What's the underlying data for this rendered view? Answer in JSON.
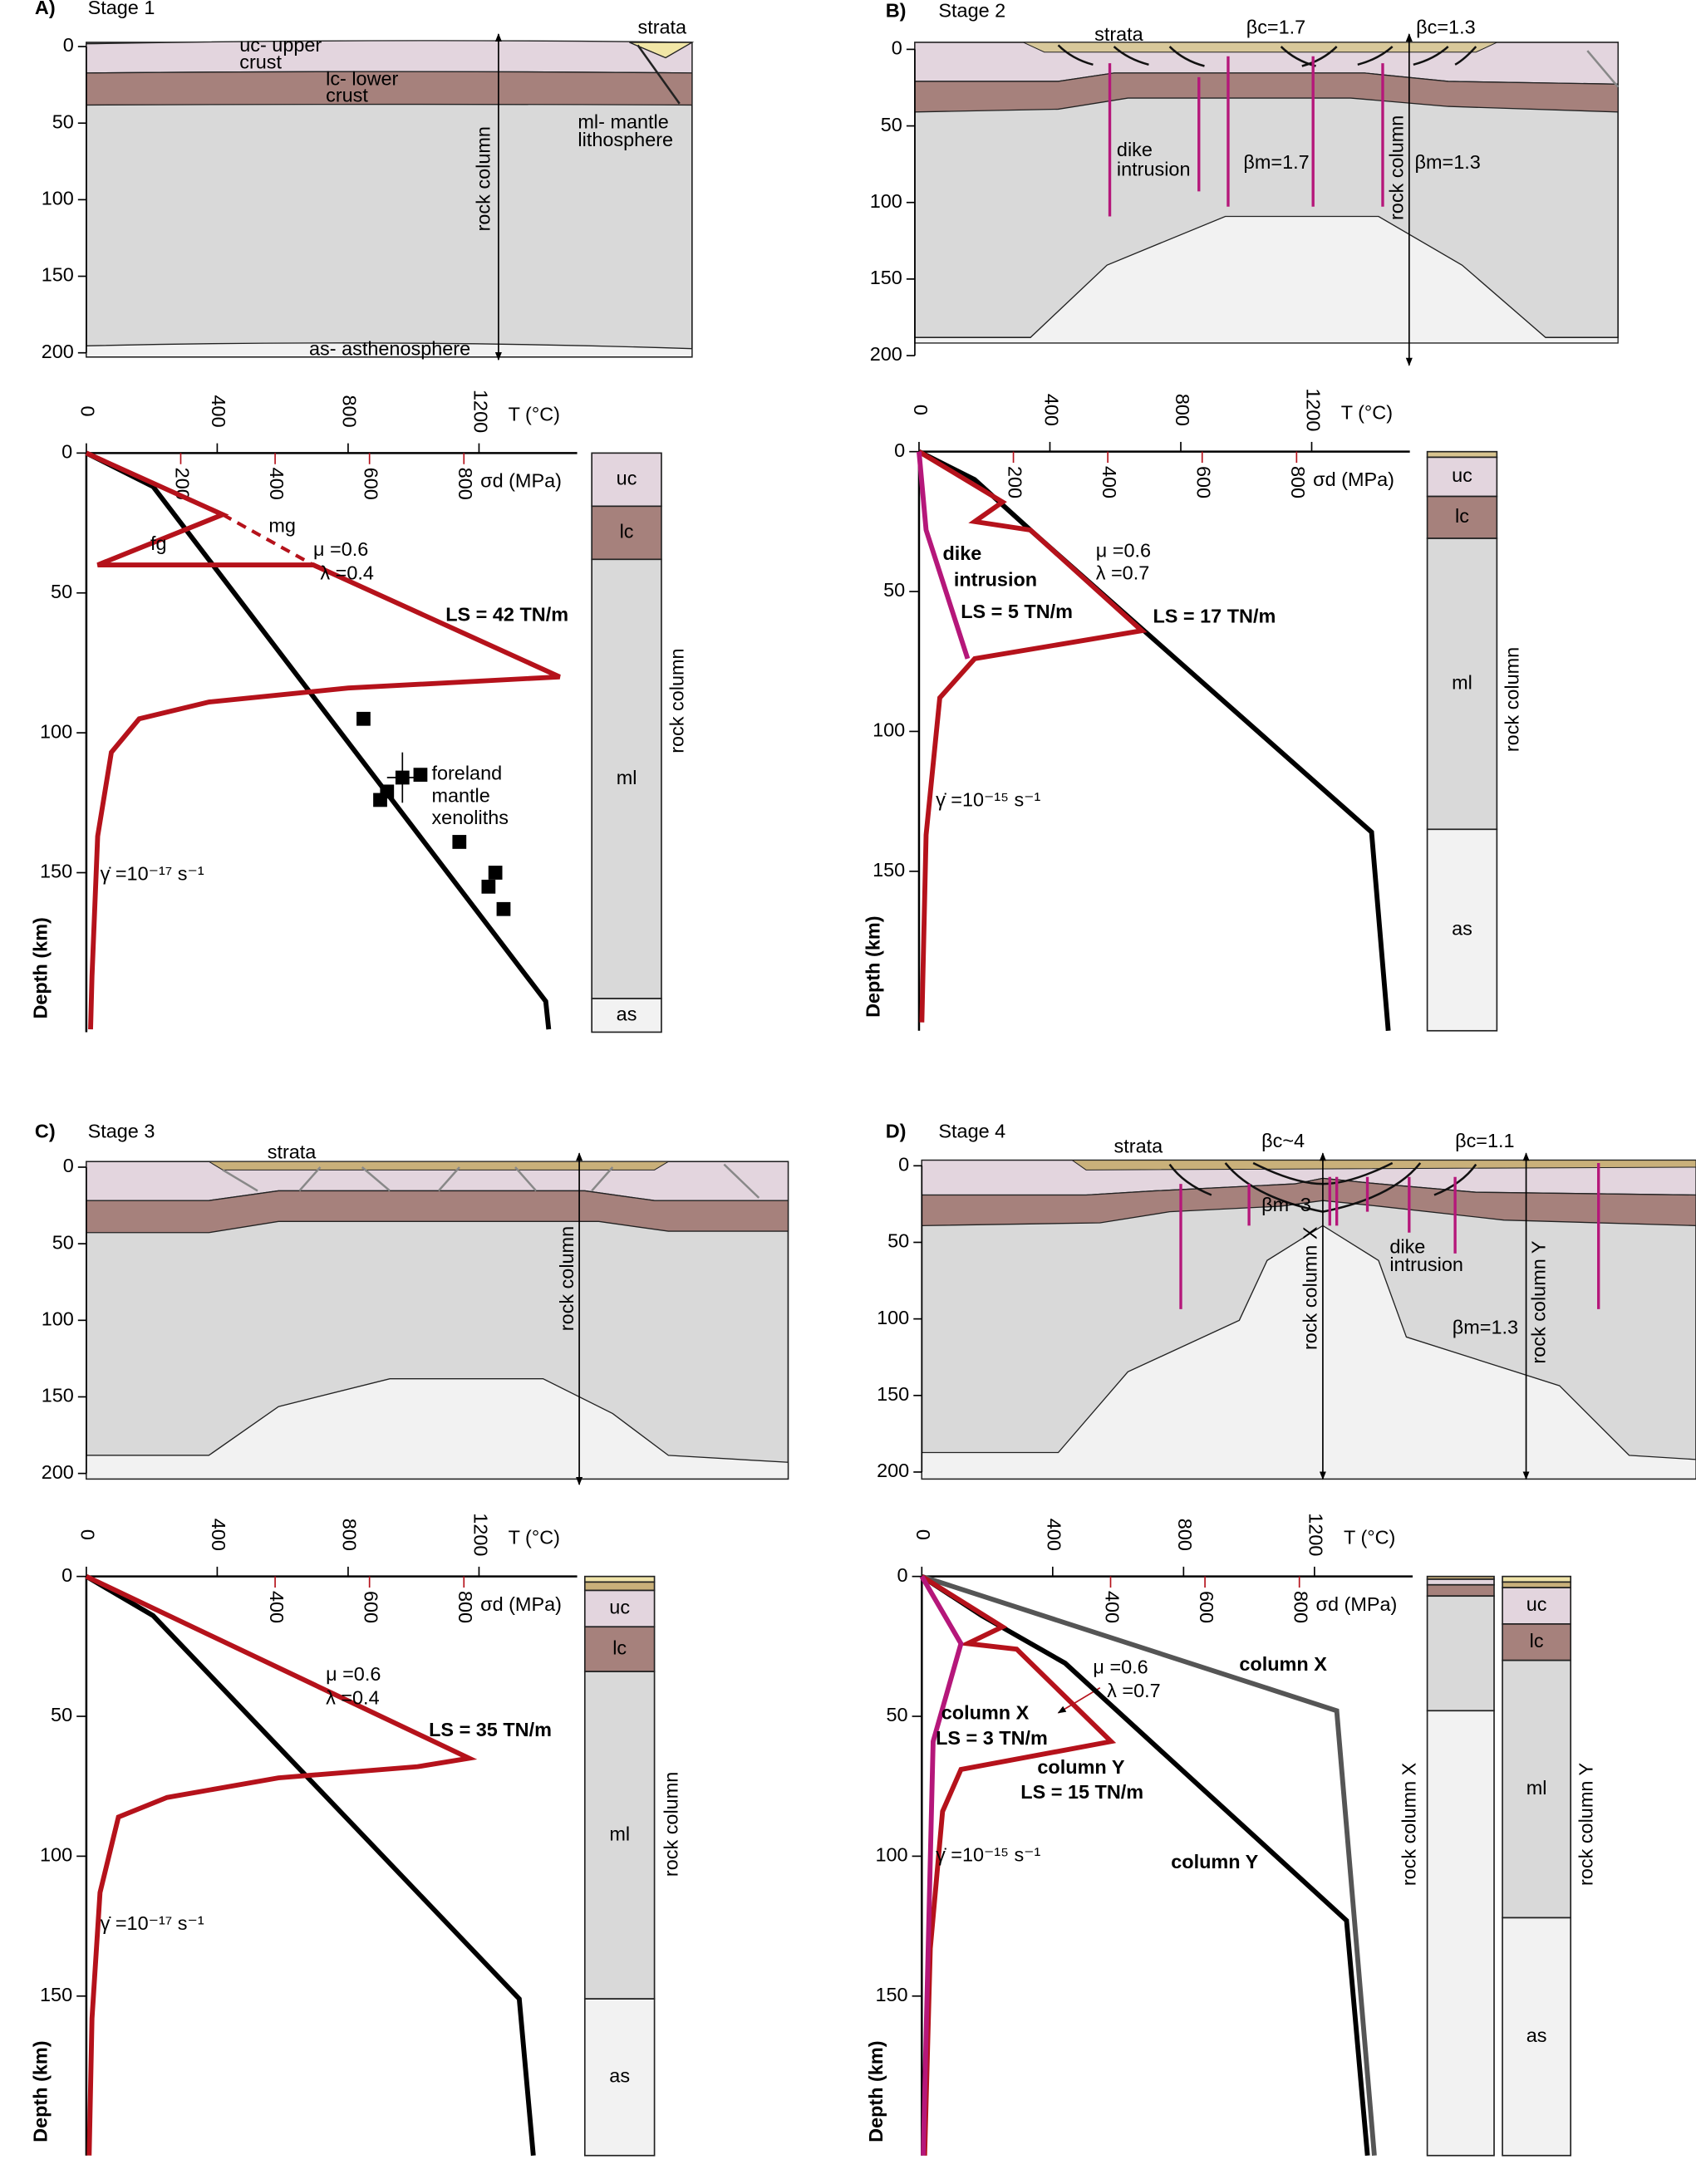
{
  "chart_data": [
    {
      "type": "line",
      "label": "A)",
      "title": "Stage 1",
      "section": {
        "ylim": [
          0,
          200
        ],
        "yticks": [
          0,
          50,
          100,
          150,
          200
        ],
        "texts": [
          "strata",
          "uc- upper",
          "crust",
          "lc- lower",
          "crust",
          "ml- mantle",
          "lithosphere",
          "as- asthenosphere",
          "rock column"
        ]
      },
      "ylim": [
        0,
        207
      ],
      "yticks": [
        0,
        50,
        100,
        150
      ],
      "ylabel": "Depth (km)",
      "xlim": [
        0,
        1500
      ],
      "xticks": [
        0,
        400,
        800,
        1200
      ],
      "xlabel": "T (°C)",
      "x2lim": [
        0,
        1040
      ],
      "x2ticks": [
        200,
        400,
        600,
        800
      ],
      "x2label": "σd (MPa)",
      "series": [
        {
          "color": "#000000",
          "axis": "x",
          "depth": [
            0,
            12,
            196,
            206
          ],
          "values": [
            0,
            204,
            1404,
            1413
          ]
        },
        {
          "color": "#b5121b",
          "axis": "x2",
          "depth": [
            0,
            22,
            40,
            40,
            80,
            84,
            89,
            95,
            107,
            137,
            187,
            206
          ],
          "values": [
            0,
            289,
            24,
            481,
            1003,
            555,
            260,
            112,
            53,
            24,
            12,
            9
          ]
        },
        {
          "color": "#b5121b",
          "axis": "x2",
          "dashed": true,
          "depth": [
            22,
            40
          ],
          "values": [
            289,
            481
          ]
        }
      ],
      "points": {
        "color": "#000000",
        "T": [
          847,
          966,
          1021,
          919,
          898,
          1140,
          1250,
          1229,
          1275
        ],
        "depth": [
          95,
          116,
          115,
          121,
          124,
          139,
          150,
          155,
          163
        ],
        "error_bar": {
          "index": 1,
          "T_err": 47,
          "depth_err": 9
        }
      },
      "annotations": [
        "fg",
        "mg",
        "μ =0.6",
        "λ =0.4",
        "LS = 42 TN/m",
        "foreland",
        "mantle",
        "xenoliths",
        "γ̇ =10⁻¹⁷ s⁻¹"
      ],
      "columns": [
        {
          "label": "rock column",
          "layers": [
            {
              "label": "uc",
              "color": "#e3d5de",
              "top": 0,
              "bottom": 19
            },
            {
              "label": "lc",
              "color": "#a6817c",
              "top": 19,
              "bottom": 38
            },
            {
              "label": "ml",
              "color": "#d9d9d9",
              "top": 38,
              "bottom": 195
            },
            {
              "label": "as",
              "color": "#f2f2f2",
              "top": 195,
              "bottom": 207
            }
          ]
        }
      ]
    },
    {
      "type": "line",
      "label": "B)",
      "title": "Stage 2",
      "section": {
        "ylim": [
          0,
          200
        ],
        "yticks": [
          0,
          50,
          100,
          150,
          200
        ],
        "texts": [
          "strata",
          "βc=1.7",
          "βc=1.3",
          "dike",
          "intrusion",
          "βm=1.7",
          "βm=1.3",
          "rock column"
        ]
      },
      "ylim": [
        0,
        207
      ],
      "yticks": [
        0,
        50,
        100,
        150
      ],
      "ylabel": "Depth (km)",
      "xlim": [
        0,
        1500
      ],
      "xticks": [
        0,
        400,
        800,
        1200
      ],
      "xlabel": "T (°C)",
      "x2lim": [
        0,
        1040
      ],
      "x2ticks": [
        200,
        400,
        600,
        800
      ],
      "x2label": "σd (MPa)",
      "series": [
        {
          "color": "#000000",
          "axis": "x",
          "depth": [
            0,
            10,
            28,
            136,
            207
          ],
          "values": [
            0,
            170,
            340,
            1383,
            1434
          ]
        },
        {
          "color": "#b5121b",
          "axis": "x2",
          "depth": [
            0,
            18,
            25,
            28,
            64,
            74,
            88,
            137,
            204
          ],
          "values": [
            0,
            177,
            118,
            236,
            472,
            118,
            44,
            15,
            6
          ]
        },
        {
          "color": "#b5177a",
          "axis": "x2",
          "depth": [
            0,
            28,
            74
          ],
          "values": [
            0,
            15,
            103
          ]
        }
      ],
      "annotations": [
        "dike",
        "intrusion",
        "LS = 5 TN/m",
        "μ =0.6",
        "λ =0.7",
        "LS = 17 TN/m",
        "γ̇ =10⁻¹⁵ s⁻¹"
      ],
      "columns": [
        {
          "label": "rock column",
          "layers": [
            {
              "color": "#d8c48f",
              "top": 0,
              "bottom": 2
            },
            {
              "label": "uc",
              "color": "#e3d5de",
              "top": 2,
              "bottom": 16
            },
            {
              "label": "lc",
              "color": "#a6817c",
              "top": 16,
              "bottom": 31
            },
            {
              "label": "ml",
              "color": "#d9d9d9",
              "top": 31,
              "bottom": 135
            },
            {
              "label": "as",
              "color": "#f2f2f2",
              "top": 135,
              "bottom": 207
            }
          ]
        }
      ]
    },
    {
      "type": "line",
      "label": "C)",
      "title": "Stage 3",
      "section": {
        "ylim": [
          0,
          200
        ],
        "yticks": [
          0,
          50,
          100,
          150,
          200
        ],
        "texts": [
          "strata",
          "rock column"
        ]
      },
      "ylim": [
        0,
        207
      ],
      "yticks": [
        0,
        50,
        100,
        150
      ],
      "ylabel": "Depth (km)",
      "xlim": [
        0,
        1500
      ],
      "xticks": [
        0,
        400,
        800,
        1200
      ],
      "xlabel": "T (°C)",
      "x2lim": [
        0,
        1040
      ],
      "x2ticks": [
        400,
        600,
        800
      ],
      "x2label": "σd (MPa)",
      "series": [
        {
          "color": "#000000",
          "axis": "x",
          "depth": [
            0,
            14,
            151,
            207
          ],
          "values": [
            0,
            204,
            1323,
            1366
          ]
        },
        {
          "color": "#b5121b",
          "axis": "x2",
          "depth": [
            0,
            65,
            68,
            72,
            79,
            86,
            113,
            158,
            207
          ],
          "values": [
            0,
            811,
            702,
            407,
            171,
            68,
            29,
            12,
            6
          ]
        }
      ],
      "annotations": [
        "μ =0.6",
        "λ =0.4",
        "LS = 35 TN/m",
        "γ̇ =10⁻¹⁷ s⁻¹"
      ],
      "columns": [
        {
          "label": "rock column",
          "layers": [
            {
              "color": "#efe3a8",
              "top": 0,
              "bottom": 2
            },
            {
              "color": "#c9b07a",
              "top": 2,
              "bottom": 5
            },
            {
              "label": "uc",
              "color": "#e3d5de",
              "top": 5,
              "bottom": 18
            },
            {
              "label": "lc",
              "color": "#a6817c",
              "top": 18,
              "bottom": 34
            },
            {
              "label": "ml",
              "color": "#d9d9d9",
              "top": 34,
              "bottom": 151
            },
            {
              "label": "as",
              "color": "#f2f2f2",
              "top": 151,
              "bottom": 207
            }
          ]
        }
      ]
    },
    {
      "type": "line",
      "label": "D)",
      "title": "Stage 4",
      "section": {
        "ylim": [
          0,
          200
        ],
        "yticks": [
          0,
          50,
          100,
          150,
          200
        ],
        "texts": [
          "strata",
          "βc~4",
          "βc=1.1",
          "βm~3",
          "dike",
          "intrusion",
          "βm=1.3",
          "rock column X",
          "rock column Y"
        ]
      },
      "ylim": [
        0,
        207
      ],
      "yticks": [
        0,
        50,
        100,
        150
      ],
      "ylabel": "Depth (km)",
      "xlim": [
        0,
        1500
      ],
      "xticks": [
        0,
        400,
        800,
        1200
      ],
      "xlabel": "T (°C)",
      "x2lim": [
        0,
        1040
      ],
      "x2ticks": [
        400,
        600,
        800
      ],
      "x2label": "σd (MPa)",
      "series": [
        {
          "color": "#000000",
          "axis": "x",
          "depth": [
            0,
            14,
            31,
            123,
            207
          ],
          "values": [
            0,
            183,
            438,
            1298,
            1362
          ]
        },
        {
          "color": "#555555",
          "axis": "x",
          "depth": [
            0,
            48,
            207
          ],
          "values": [
            0,
            1268,
            1383
          ]
        },
        {
          "color": "#b5121b",
          "axis": "x2",
          "depth": [
            0,
            18,
            24,
            26,
            59,
            69,
            84,
            133,
            207
          ],
          "values": [
            0,
            171,
            97,
            201,
            401,
            83,
            44,
            18,
            6
          ]
        },
        {
          "color": "#b5177a",
          "axis": "x2",
          "depth": [
            0,
            24,
            59,
            207
          ],
          "values": [
            0,
            83,
            24,
            3
          ]
        }
      ],
      "annotations": [
        "μ =0.6",
        "λ =0.7",
        "column X",
        "column X",
        "LS = 3 TN/m",
        "column Y",
        "LS = 15 TN/m",
        "column Y",
        "γ̇ =10⁻¹⁵ s⁻¹"
      ],
      "columns": [
        {
          "label": "rock column X",
          "layers": [
            {
              "color": "#c9b07a",
              "top": 0,
              "bottom": 1
            },
            {
              "color": "#e3d5de",
              "top": 1,
              "bottom": 3
            },
            {
              "color": "#a6817c",
              "top": 3,
              "bottom": 7
            },
            {
              "color": "#d9d9d9",
              "top": 7,
              "bottom": 48
            },
            {
              "color": "#f2f2f2",
              "top": 48,
              "bottom": 207
            }
          ]
        },
        {
          "label": "rock column Y",
          "layers": [
            {
              "color": "#efe3a8",
              "top": 0,
              "bottom": 2
            },
            {
              "color": "#c9b07a",
              "top": 2,
              "bottom": 4
            },
            {
              "label": "uc",
              "color": "#e3d5de",
              "top": 4,
              "bottom": 17
            },
            {
              "label": "lc",
              "color": "#a6817c",
              "top": 17,
              "bottom": 30
            },
            {
              "label": "ml",
              "color": "#d9d9d9",
              "top": 30,
              "bottom": 122
            },
            {
              "label": "as",
              "color": "#f2f2f2",
              "top": 122,
              "bottom": 207
            }
          ]
        }
      ]
    }
  ]
}
